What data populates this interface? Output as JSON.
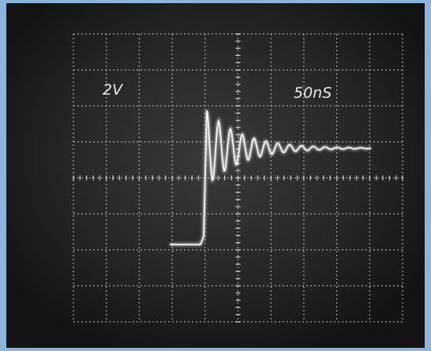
{
  "screen": {
    "volts_per_div": "2V",
    "time_per_div": "50nS"
  }
}
